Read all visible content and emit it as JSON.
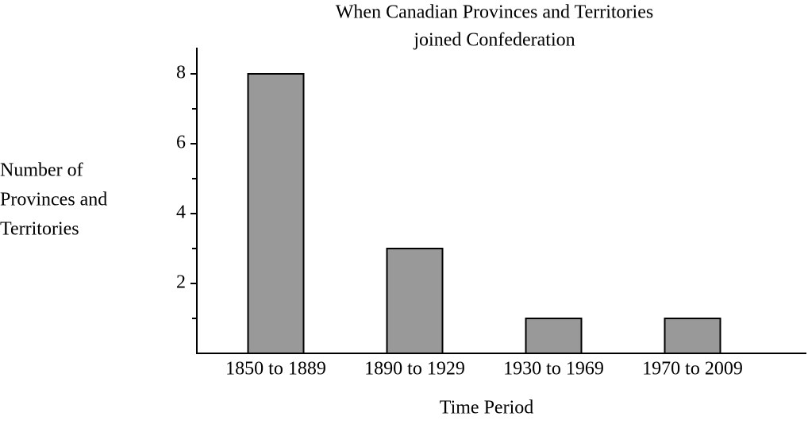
{
  "chart_data": {
    "type": "bar",
    "title": [
      "When Canadian Provinces and Territories",
      "joined Confederation"
    ],
    "y_label": [
      "Number of",
      "Provinces and",
      "Territories"
    ],
    "x_label": "Time Period",
    "categories": [
      "1850 to 1889",
      "1890 to 1929",
      "1930 to 1969",
      "1970 to 2009"
    ],
    "values": [
      8,
      3,
      1,
      1
    ],
    "color": "#999999",
    "ylim": [
      0,
      8.75
    ],
    "yticks": [
      2,
      4,
      6,
      8
    ],
    "minor_yticks": [
      1,
      3,
      5,
      7
    ],
    "grid": false
  }
}
